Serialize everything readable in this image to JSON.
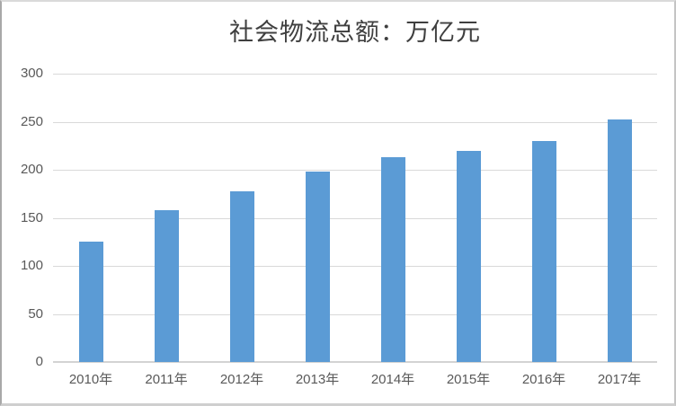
{
  "chart_data": {
    "type": "bar",
    "title": "社会物流总额：万亿元",
    "categories": [
      "2010年",
      "2011年",
      "2012年",
      "2013年",
      "2014年",
      "2015年",
      "2016年",
      "2017年"
    ],
    "values": [
      125.4,
      158.4,
      177.3,
      197.8,
      213.5,
      219.2,
      229.7,
      252.8
    ],
    "xlabel": "",
    "ylabel": "",
    "ylim": [
      0,
      300
    ],
    "yticks": [
      0,
      50,
      100,
      150,
      200,
      250,
      300
    ],
    "grid": true,
    "legend_position": "none",
    "bar_color": "#5B9BD5",
    "gridline_color": "#d9d9d9",
    "zero_axis_color": "#d3d3d3",
    "tick_label_color": "#595959",
    "title_color": "#3f3f3f"
  }
}
